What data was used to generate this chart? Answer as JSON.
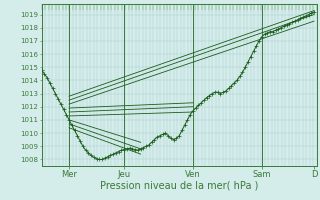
{
  "xlabel": "Pression niveau de la mer( hPa )",
  "bg_color": "#d4ecea",
  "grid_color": "#a8cccc",
  "line_color": "#1a5c1a",
  "ylim": [
    1007.5,
    1019.8
  ],
  "xlim": [
    0.0,
    5.0
  ],
  "yticks": [
    1008,
    1009,
    1010,
    1011,
    1012,
    1013,
    1014,
    1015,
    1016,
    1017,
    1018,
    1019
  ],
  "xtick_labels": [
    "Mer",
    "Jeu",
    "Ven",
    "Sam",
    "D"
  ],
  "xtick_positions": [
    0.5,
    1.5,
    2.75,
    4.0,
    4.95
  ],
  "main_curve_x": [
    0.0,
    0.05,
    0.1,
    0.15,
    0.2,
    0.25,
    0.3,
    0.35,
    0.4,
    0.45,
    0.5,
    0.55,
    0.6,
    0.65,
    0.7,
    0.75,
    0.8,
    0.85,
    0.9,
    0.95,
    1.0,
    1.05,
    1.1,
    1.15,
    1.2,
    1.25,
    1.3,
    1.35,
    1.4,
    1.45,
    1.5,
    1.55,
    1.6,
    1.65,
    1.7,
    1.75,
    1.8,
    1.85,
    1.9,
    1.95,
    2.0,
    2.05,
    2.1,
    2.15,
    2.2,
    2.25,
    2.3,
    2.35,
    2.4,
    2.45,
    2.5,
    2.55,
    2.6,
    2.65,
    2.7,
    2.75,
    2.8,
    2.85,
    2.9,
    2.95,
    3.0,
    3.05,
    3.1,
    3.15,
    3.2,
    3.25,
    3.3,
    3.35,
    3.4,
    3.45,
    3.5,
    3.55,
    3.6,
    3.65,
    3.7,
    3.75,
    3.8,
    3.85,
    3.9,
    3.95,
    4.0,
    4.05,
    4.1,
    4.15,
    4.2,
    4.25,
    4.3,
    4.35,
    4.4,
    4.45,
    4.5,
    4.55,
    4.6,
    4.65,
    4.7,
    4.75,
    4.8,
    4.85,
    4.9,
    4.95
  ],
  "main_curve_y": [
    1014.8,
    1014.5,
    1014.2,
    1013.8,
    1013.4,
    1013.0,
    1012.6,
    1012.2,
    1011.8,
    1011.4,
    1011.0,
    1010.6,
    1010.2,
    1009.8,
    1009.4,
    1009.0,
    1008.7,
    1008.5,
    1008.3,
    1008.15,
    1008.05,
    1008.0,
    1008.0,
    1008.1,
    1008.2,
    1008.3,
    1008.4,
    1008.5,
    1008.6,
    1008.7,
    1008.75,
    1008.8,
    1008.85,
    1008.8,
    1008.75,
    1008.7,
    1008.8,
    1008.9,
    1009.0,
    1009.1,
    1009.3,
    1009.5,
    1009.7,
    1009.8,
    1009.9,
    1010.0,
    1009.8,
    1009.6,
    1009.5,
    1009.6,
    1009.8,
    1010.2,
    1010.6,
    1011.0,
    1011.4,
    1011.7,
    1011.9,
    1012.1,
    1012.3,
    1012.5,
    1012.7,
    1012.85,
    1013.0,
    1013.1,
    1013.1,
    1013.0,
    1013.1,
    1013.2,
    1013.4,
    1013.6,
    1013.8,
    1014.0,
    1014.3,
    1014.6,
    1015.0,
    1015.4,
    1015.8,
    1016.2,
    1016.6,
    1017.0,
    1017.3,
    1017.5,
    1017.6,
    1017.7,
    1017.7,
    1017.8,
    1017.9,
    1018.0,
    1018.1,
    1018.2,
    1018.3,
    1018.4,
    1018.5,
    1018.6,
    1018.7,
    1018.8,
    1018.9,
    1019.0,
    1019.1,
    1019.2
  ],
  "forecast_lines": [
    {
      "x0": 0.5,
      "y0": 1012.8,
      "x1": 4.95,
      "y1": 1019.3
    },
    {
      "x0": 0.5,
      "y0": 1012.5,
      "x1": 4.95,
      "y1": 1019.0
    },
    {
      "x0": 0.5,
      "y0": 1012.2,
      "x1": 4.95,
      "y1": 1018.5
    },
    {
      "x0": 0.5,
      "y0": 1011.9,
      "x1": 2.75,
      "y1": 1012.3
    },
    {
      "x0": 0.5,
      "y0": 1011.6,
      "x1": 2.75,
      "y1": 1012.0
    },
    {
      "x0": 0.5,
      "y0": 1011.3,
      "x1": 2.75,
      "y1": 1011.6
    },
    {
      "x0": 0.5,
      "y0": 1011.0,
      "x1": 1.8,
      "y1": 1009.3
    },
    {
      "x0": 0.5,
      "y0": 1010.7,
      "x1": 1.8,
      "y1": 1008.8
    },
    {
      "x0": 0.5,
      "y0": 1010.4,
      "x1": 1.8,
      "y1": 1008.4
    }
  ],
  "vline_color": "#3a7a3a",
  "spine_color": "#3a7a3a",
  "xlabel_fontsize": 7,
  "ytick_fontsize": 5,
  "xtick_fontsize": 6
}
